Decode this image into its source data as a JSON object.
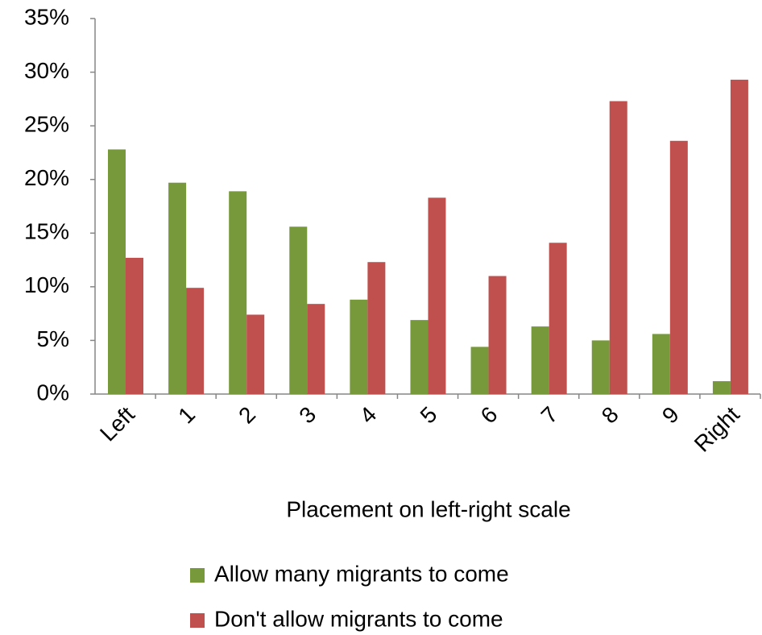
{
  "chart_data": {
    "type": "bar",
    "x_label": "Placement on left-right scale",
    "categories": [
      "Left",
      "1",
      "2",
      "3",
      "4",
      "5",
      "6",
      "7",
      "8",
      "9",
      "Right"
    ],
    "series": [
      {
        "name": "Allow many migrants to come",
        "color": "#77993b",
        "values": [
          22.8,
          19.7,
          18.9,
          15.6,
          8.8,
          6.9,
          4.4,
          6.3,
          5.0,
          5.6,
          1.2
        ]
      },
      {
        "name": "Don't allow migrants to come",
        "color": "#c0504d",
        "values": [
          12.7,
          9.9,
          7.4,
          8.4,
          12.3,
          18.3,
          11.0,
          14.1,
          27.3,
          23.6,
          29.3
        ]
      }
    ],
    "ylim": [
      0,
      35
    ],
    "yticks": [
      {
        "value": 0,
        "label": "0%"
      },
      {
        "value": 5,
        "label": "5%"
      },
      {
        "value": 10,
        "label": "10%"
      },
      {
        "value": 15,
        "label": "15%"
      },
      {
        "value": 20,
        "label": "20%"
      },
      {
        "value": 25,
        "label": "25%"
      },
      {
        "value": 30,
        "label": "30%"
      },
      {
        "value": 35,
        "label": "35%"
      }
    ],
    "grid": false
  }
}
